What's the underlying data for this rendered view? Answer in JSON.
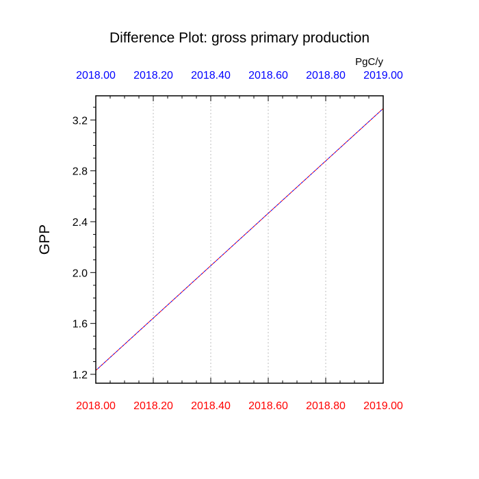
{
  "chart_data": {
    "type": "line",
    "title": "Difference Plot: gross primary production",
    "units": "PgC/y",
    "ylabel": "GPP",
    "xlim": [
      2018.0,
      2019.0
    ],
    "ylim": [
      1.13,
      3.39
    ],
    "x_ticks": [
      2018.0,
      2018.2,
      2018.4,
      2018.6,
      2018.8,
      2019.0
    ],
    "x_tick_labels": [
      "2018.00",
      "2018.20",
      "2018.40",
      "2018.60",
      "2018.80",
      "2019.00"
    ],
    "y_ticks": [
      1.2,
      1.6,
      2.0,
      2.4,
      2.8,
      3.2
    ],
    "y_tick_labels": [
      "1.2",
      "1.6",
      "2.0",
      "2.4",
      "2.8",
      "3.2"
    ],
    "grid_x": true,
    "series": [
      {
        "x": [
          2018.0,
          2019.0
        ],
        "y": [
          1.23,
          3.29
        ],
        "color": "#ff0000",
        "style": "dashed"
      },
      {
        "x": [
          2018.0,
          2019.0
        ],
        "y": [
          1.23,
          3.29
        ],
        "color": "#0000ff",
        "style": "dashed"
      }
    ],
    "bottom_axis_color": "#ff0000",
    "top_axis_color": "#0000ff"
  }
}
